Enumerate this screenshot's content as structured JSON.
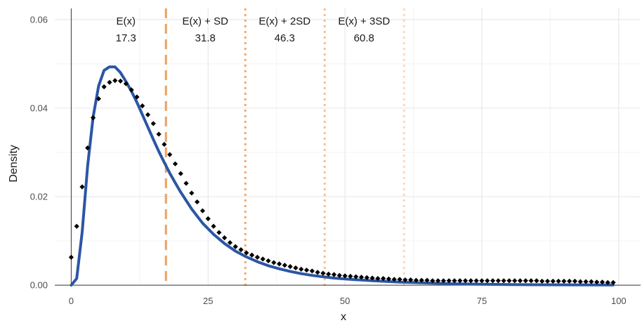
{
  "chart_data": {
    "type": "line",
    "title": "",
    "xlabel": "x",
    "ylabel": "Density",
    "xlim": [
      -3,
      104
    ],
    "ylim": [
      -0.0003,
      0.0625
    ],
    "x_ticks": [
      0,
      25,
      50,
      75,
      100
    ],
    "x_tick_labels": [
      "0",
      "25",
      "50",
      "75",
      "100"
    ],
    "y_ticks": [
      0,
      0.02,
      0.04,
      0.06
    ],
    "y_tick_labels": [
      "0.00",
      "0.02",
      "0.04",
      "0.06"
    ],
    "grid": true,
    "legend": "none",
    "series": [
      {
        "style": "line",
        "color": "#2b56a5",
        "x": [
          0,
          1,
          2,
          3,
          4,
          5,
          6,
          7,
          8,
          9,
          10,
          11,
          12,
          13,
          14,
          15,
          16,
          17,
          18,
          19,
          20,
          22,
          24,
          26,
          28,
          30,
          32,
          34,
          36,
          38,
          40,
          42,
          44,
          46,
          48,
          50,
          55,
          60,
          65,
          70,
          75,
          80,
          85,
          90,
          95,
          99
        ],
        "y": [
          0.0,
          0.0015,
          0.012,
          0.027,
          0.038,
          0.045,
          0.0485,
          0.0493,
          0.0493,
          0.048,
          0.046,
          0.0438,
          0.0413,
          0.0385,
          0.0357,
          0.0329,
          0.0302,
          0.0277,
          0.0253,
          0.0231,
          0.021,
          0.0172,
          0.014,
          0.0115,
          0.0094,
          0.0077,
          0.0064,
          0.0053,
          0.0044,
          0.0037,
          0.0031,
          0.0026,
          0.0022,
          0.0019,
          0.0016,
          0.0014,
          0.001,
          0.0007,
          0.0005,
          0.0003,
          0.0002,
          0.00015,
          0.0001,
          8e-05,
          5e-05,
          3e-05
        ]
      },
      {
        "style": "points",
        "color": "#000000",
        "x": [
          0,
          1,
          2,
          3,
          4,
          5,
          6,
          7,
          8,
          9,
          10,
          11,
          12,
          13,
          14,
          15,
          16,
          17,
          18,
          19,
          20,
          21,
          22,
          23,
          24,
          25,
          26,
          27,
          28,
          29,
          30,
          31,
          32,
          33,
          34,
          35,
          36,
          37,
          38,
          39,
          40,
          41,
          42,
          43,
          44,
          45,
          46,
          47,
          48,
          49,
          50,
          51,
          52,
          53,
          54,
          55,
          56,
          57,
          58,
          59,
          60,
          61,
          62,
          63,
          64,
          65,
          66,
          67,
          68,
          69,
          70,
          71,
          72,
          73,
          74,
          75,
          76,
          77,
          78,
          79,
          80,
          81,
          82,
          83,
          84,
          85,
          86,
          87,
          88,
          89,
          90,
          91,
          92,
          93,
          94,
          95,
          96,
          97,
          98,
          99
        ],
        "y": [
          0.0063,
          0.0133,
          0.0222,
          0.031,
          0.0378,
          0.0421,
          0.0448,
          0.0458,
          0.0462,
          0.0461,
          0.0455,
          0.0441,
          0.0425,
          0.0405,
          0.0385,
          0.0365,
          0.0341,
          0.0318,
          0.0295,
          0.0274,
          0.0252,
          0.023,
          0.0208,
          0.0188,
          0.0168,
          0.015,
          0.0133,
          0.0119,
          0.0107,
          0.0096,
          0.0087,
          0.008,
          0.0073,
          0.0068,
          0.0063,
          0.0059,
          0.0055,
          0.0051,
          0.0048,
          0.0045,
          0.0042,
          0.0039,
          0.0036,
          0.0034,
          0.0032,
          0.0029,
          0.0027,
          0.0025,
          0.0024,
          0.0022,
          0.0021,
          0.002,
          0.0019,
          0.0018,
          0.0017,
          0.0016,
          0.0015,
          0.0015,
          0.0014,
          0.0013,
          0.0013,
          0.0012,
          0.0012,
          0.0011,
          0.0011,
          0.0011,
          0.001,
          0.001,
          0.001,
          0.001,
          0.001,
          0.001,
          0.001,
          0.001,
          0.001,
          0.001,
          0.001,
          0.001,
          0.001,
          0.001,
          0.001,
          0.001,
          0.001,
          0.001,
          0.001,
          0.001,
          0.0009,
          0.0009,
          0.0009,
          0.0009,
          0.0009,
          0.0009,
          0.0009,
          0.0008,
          0.0008,
          0.0008,
          0.0007,
          0.0007,
          0.0006,
          0.0006
        ]
      }
    ],
    "reference_lines": [
      {
        "x": 17.3,
        "label": "E(x)",
        "value_label": "17.3",
        "color": "#f0a05c",
        "opacity": 1.0,
        "dash": "long"
      },
      {
        "x": 31.8,
        "label": "E(x) + SD",
        "value_label": "31.8",
        "color": "#f4a86d",
        "opacity": 1.0,
        "dash": "dot"
      },
      {
        "x": 46.3,
        "label": "E(x) + 2SD",
        "value_label": "46.3",
        "color": "#f4a86d",
        "opacity": 0.75,
        "dash": "dot"
      },
      {
        "x": 60.8,
        "label": "E(x) + 3SD",
        "value_label": "60.8",
        "color": "#f4a86d",
        "opacity": 0.45,
        "dash": "dot"
      }
    ]
  }
}
